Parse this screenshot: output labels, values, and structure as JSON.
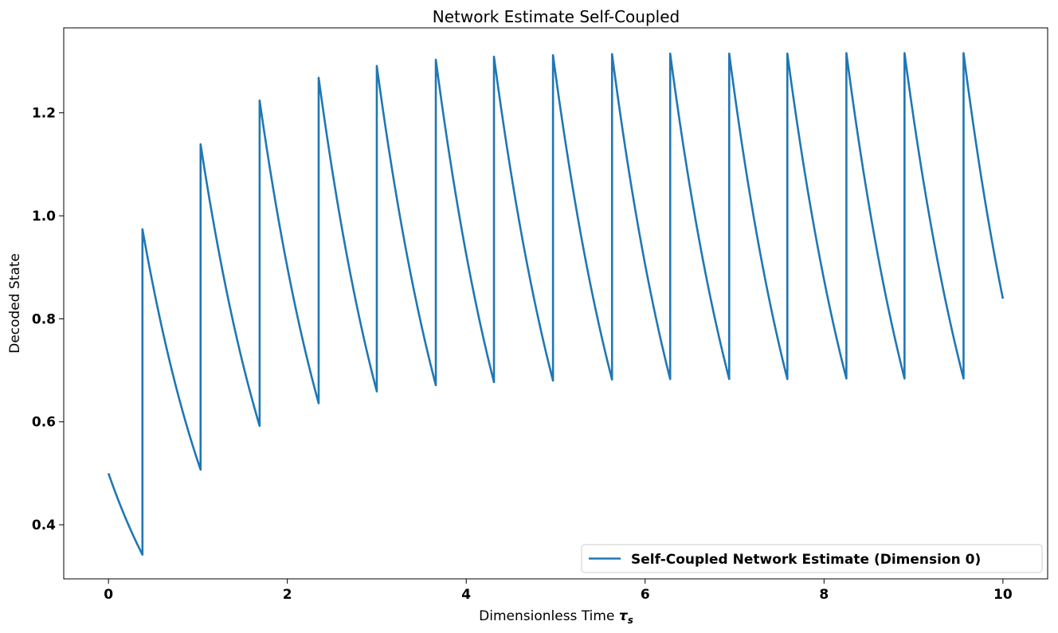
{
  "chart_data": {
    "type": "line",
    "title": "Network Estimate Self-Coupled",
    "xlabel": "Dimensionless Time ",
    "xlabel_symbol": "τ",
    "xlabel_subscript": "s",
    "ylabel": "Decoded State",
    "xlim": [
      -0.5,
      10.5
    ],
    "ylim": [
      0.295,
      1.365
    ],
    "xticks": [
      0,
      2,
      4,
      6,
      8,
      10
    ],
    "xtick_labels": [
      "0",
      "2",
      "4",
      "6",
      "8",
      "10"
    ],
    "yticks": [
      0.4,
      0.6,
      0.8,
      1.0,
      1.2
    ],
    "ytick_labels": [
      "0.4",
      "0.6",
      "0.8",
      "1.0",
      "1.2"
    ],
    "grid": false,
    "legend_position": "lower-right",
    "series": [
      {
        "name": "Self-Coupled  Network Estimate (Dimension 0)",
        "color": "#1f77b4",
        "start_value": 0.5,
        "end_value": 0.839,
        "end_time": 10.0,
        "spikes": [
          {
            "t": 0.38,
            "low": 0.342,
            "high": 0.974
          },
          {
            "t": 1.03,
            "low": 0.507,
            "high": 1.139
          },
          {
            "t": 1.69,
            "low": 0.592,
            "high": 1.224
          },
          {
            "t": 2.35,
            "low": 0.636,
            "high": 1.268
          },
          {
            "t": 3.0,
            "low": 0.659,
            "high": 1.291
          },
          {
            "t": 3.66,
            "low": 0.671,
            "high": 1.303
          },
          {
            "t": 4.31,
            "low": 0.677,
            "high": 1.309
          },
          {
            "t": 4.97,
            "low": 0.68,
            "high": 1.312
          },
          {
            "t": 5.63,
            "low": 0.682,
            "high": 1.314
          },
          {
            "t": 6.28,
            "low": 0.683,
            "high": 1.315
          },
          {
            "t": 6.94,
            "low": 0.683,
            "high": 1.315
          },
          {
            "t": 7.59,
            "low": 0.683,
            "high": 1.315
          },
          {
            "t": 8.25,
            "low": 0.684,
            "high": 1.316
          },
          {
            "t": 8.9,
            "low": 0.684,
            "high": 1.316
          },
          {
            "t": 9.56,
            "low": 0.684,
            "high": 1.316
          }
        ]
      }
    ]
  }
}
